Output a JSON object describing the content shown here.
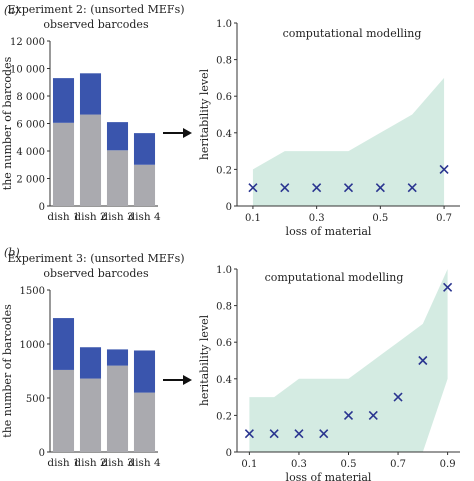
{
  "panels": [
    {
      "label": "(a)",
      "title_line1": "Experiment 2: (unsorted MEFs)",
      "title_line2": "observed barcodes",
      "model_title": "computational modelling"
    },
    {
      "label": "(b)",
      "title_line1": "Experiment 3: (unsorted MEFs)",
      "title_line2": "observed barcodes",
      "model_title": "computational modelling"
    }
  ],
  "colors": {
    "grey": "#aaaaaf",
    "blue": "#3a55ad",
    "band": "#d4ebe2",
    "marker": "#2a3590",
    "arrow": "#111111"
  },
  "chart_data": [
    {
      "id": "a-bars",
      "type": "bar",
      "stacked": true,
      "categories": [
        "dish 1",
        "dish 2",
        "dish 3",
        "dish 4"
      ],
      "series": [
        {
          "color": "grey",
          "values": [
            6050,
            6650,
            4050,
            3000
          ]
        },
        {
          "color": "blue",
          "values": [
            3250,
            3000,
            2050,
            2300
          ]
        }
      ],
      "ylabel": "the number of barcodes",
      "ylim": [
        0,
        12000
      ],
      "yticks": [
        0,
        2000,
        4000,
        6000,
        8000,
        10000,
        12000
      ],
      "yticklabels": [
        "0",
        "2 000",
        "4 000",
        "6 000",
        "8 000",
        "10 000",
        "12 000"
      ]
    },
    {
      "id": "a-model",
      "type": "scatter",
      "marker": "x",
      "x": [
        0.1,
        0.2,
        0.3,
        0.4,
        0.5,
        0.6,
        0.7
      ],
      "y": [
        0.1,
        0.1,
        0.1,
        0.1,
        0.1,
        0.1,
        0.2
      ],
      "band": {
        "x": [
          0.1,
          0.2,
          0.3,
          0.4,
          0.5,
          0.6,
          0.7
        ],
        "lower": [
          0,
          0,
          0,
          0,
          0,
          0,
          0
        ],
        "upper": [
          0.2,
          0.3,
          0.3,
          0.3,
          0.4,
          0.5,
          0.7
        ]
      },
      "xlabel": "loss of material",
      "ylabel": "heritability level",
      "xlim": [
        0.05,
        0.75
      ],
      "ylim": [
        0,
        1.0
      ],
      "xticks": [
        0.1,
        0.3,
        0.5,
        0.7
      ],
      "yticks": [
        0,
        0.2,
        0.4,
        0.6,
        0.8,
        1.0
      ],
      "yticklabels": [
        "0",
        "0.2",
        "0.4",
        "0.6",
        "0.8",
        "1.0"
      ]
    },
    {
      "id": "b-bars",
      "type": "bar",
      "stacked": true,
      "categories": [
        "dish 1",
        "dish 2",
        "dish 3",
        "dish 4"
      ],
      "series": [
        {
          "color": "grey",
          "values": [
            760,
            680,
            800,
            550
          ]
        },
        {
          "color": "blue",
          "values": [
            480,
            290,
            150,
            390
          ]
        }
      ],
      "ylabel": "the number of barcodes",
      "ylim": [
        0,
        1500
      ],
      "yticks": [
        0,
        500,
        1000,
        1500
      ],
      "yticklabels": [
        "0",
        "500",
        "1000",
        "1500"
      ]
    },
    {
      "id": "b-model",
      "type": "scatter",
      "marker": "x",
      "x": [
        0.1,
        0.2,
        0.3,
        0.4,
        0.5,
        0.6,
        0.7,
        0.8,
        0.9
      ],
      "y": [
        0.1,
        0.1,
        0.1,
        0.1,
        0.2,
        0.2,
        0.3,
        0.5,
        0.9
      ],
      "band": {
        "x": [
          0.1,
          0.2,
          0.3,
          0.4,
          0.5,
          0.6,
          0.7,
          0.8,
          0.9
        ],
        "lower": [
          0,
          0,
          0,
          0,
          0,
          0,
          0,
          0,
          0.4
        ],
        "upper": [
          0.3,
          0.3,
          0.4,
          0.4,
          0.4,
          0.5,
          0.6,
          0.7,
          1.0
        ]
      },
      "xlabel": "loss of material",
      "ylabel": "heritability level",
      "xlim": [
        0.05,
        0.95
      ],
      "ylim": [
        0,
        1.0
      ],
      "xticks": [
        0.1,
        0.3,
        0.5,
        0.7,
        0.9
      ],
      "yticks": [
        0,
        0.2,
        0.4,
        0.6,
        0.8,
        1.0
      ],
      "yticklabels": [
        "0",
        "0.2",
        "0.4",
        "0.6",
        "0.8",
        "1.0"
      ]
    }
  ]
}
